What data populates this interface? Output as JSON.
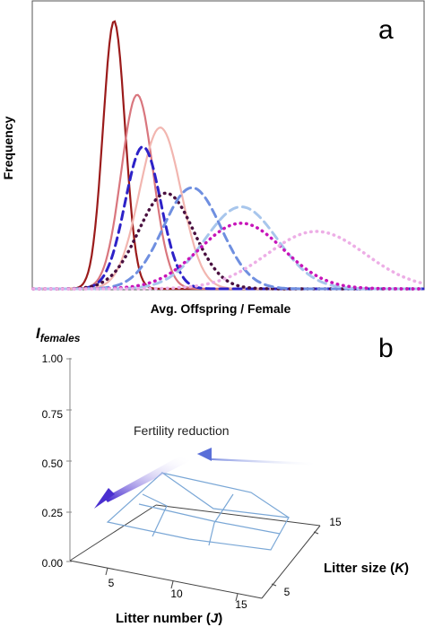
{
  "chart_data": [
    {
      "panel": "a",
      "type": "line",
      "xlabel": "Avg. Offspring / Female",
      "ylabel": "Frequency",
      "grid": false,
      "series": [
        {
          "style": "solid",
          "color": "#9b1b1b",
          "mean": 2.8,
          "sd": 0.38,
          "peak": 0.98
        },
        {
          "style": "solid",
          "color": "#d9767e",
          "mean": 3.6,
          "sd": 0.55,
          "peak": 0.71
        },
        {
          "style": "solid",
          "color": "#f2b6b0",
          "mean": 4.4,
          "sd": 0.72,
          "peak": 0.59
        },
        {
          "style": "dashed",
          "color": "#2d22c8",
          "mean": 3.8,
          "sd": 0.62,
          "peak": 0.52
        },
        {
          "style": "dotted",
          "color": "#4a1040",
          "mean": 4.6,
          "sd": 0.95,
          "peak": 0.35
        },
        {
          "style": "dashed",
          "color": "#6f8fe0",
          "mean": 5.5,
          "sd": 1.0,
          "peak": 0.37
        },
        {
          "style": "dashed",
          "color": "#a8c6ec",
          "mean": 7.2,
          "sd": 1.25,
          "peak": 0.3
        },
        {
          "style": "dotted",
          "color": "#c715b9",
          "mean": 7.2,
          "sd": 1.45,
          "peak": 0.24
        },
        {
          "style": "dotted",
          "color": "#edaee6",
          "mean": 9.8,
          "sd": 1.7,
          "peak": 0.21
        }
      ],
      "xlim": [
        0,
        13.5
      ],
      "ylim": [
        0,
        1.05
      ]
    },
    {
      "panel": "b",
      "type": "surface",
      "title": "I_females",
      "xlabel": "Litter number (J)",
      "ylabel": "Litter size (K)",
      "x_ticks": [
        "5",
        "10",
        "15"
      ],
      "y_ticks": [
        "5",
        "15"
      ],
      "z_ticks": [
        "0.00",
        "0.25",
        "0.50",
        "0.75",
        "1.00"
      ],
      "zlim": [
        0,
        1
      ],
      "annotation": "Fertility reduction"
    }
  ],
  "labels": {
    "panel_a": "a",
    "panel_b": "b",
    "a_xlabel": "Avg. Offspring / Female",
    "a_ylabel": "Frequency",
    "b_title_main": "I",
    "b_title_sub": "females",
    "b_xlabel_main": "Litter number (",
    "b_xlabel_var": "J",
    "b_xlabel_end": ")",
    "b_ylabel_main": "Litter size (",
    "b_ylabel_var": "K",
    "b_ylabel_end": ")",
    "b_z_t0": "0.00",
    "b_z_t1": "0.25",
    "b_z_t2": "0.50",
    "b_z_t3": "0.75",
    "b_z_t4": "1.00",
    "b_x_t0": "5",
    "b_x_t1": "10",
    "b_x_t2": "15",
    "b_y_t0": "5",
    "b_y_t1": "15",
    "annotation": "Fertility reduction"
  }
}
